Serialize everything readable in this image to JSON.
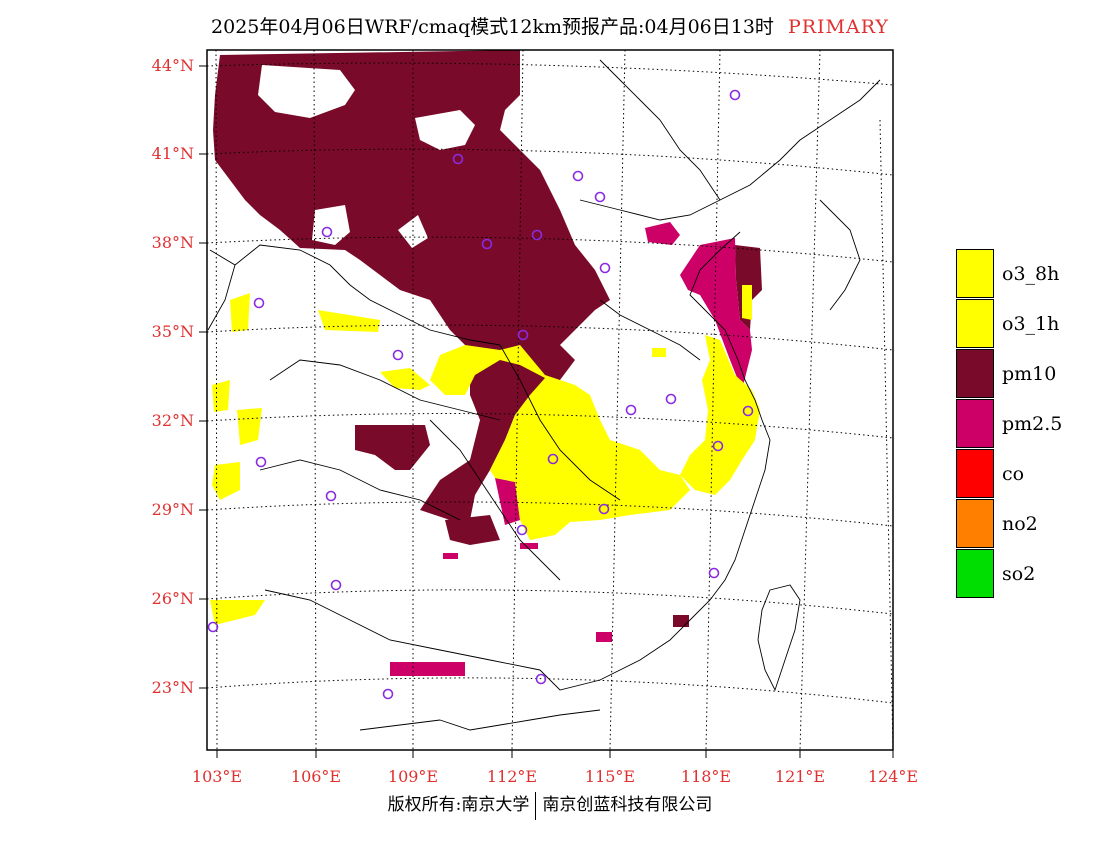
{
  "title": {
    "main": "2025年04月06日WRF/cmaq模式12km预报产品:04月06日13时",
    "tag": "PRIMARY"
  },
  "axes": {
    "lat_labels": [
      "44°N",
      "41°N",
      "38°N",
      "35°N",
      "32°N",
      "29°N",
      "26°N",
      "23°N"
    ],
    "lon_labels": [
      "103°E",
      "106°E",
      "109°E",
      "112°E",
      "115°E",
      "118°E",
      "121°E",
      "124°E"
    ]
  },
  "legend": {
    "items": [
      {
        "label": "o3_8h",
        "color": "#ffff00"
      },
      {
        "label": "o3_1h",
        "color": "#ffff00"
      },
      {
        "label": "pm10",
        "color": "#7a0a2a"
      },
      {
        "label": "pm2.5",
        "color": "#cc0066"
      },
      {
        "label": "co",
        "color": "#ff0000"
      },
      {
        "label": "no2",
        "color": "#ff8000"
      },
      {
        "label": "so2",
        "color": "#00dd00"
      }
    ]
  },
  "colors": {
    "pm10": "#7a0a2a",
    "pm25": "#cc0066",
    "o3": "#ffff00",
    "station": "#8a2be2",
    "axis_label": "#e03030"
  },
  "footer": {
    "left": "版权所有:南京大学",
    "right": "南京创蓝科技有限公司"
  }
}
